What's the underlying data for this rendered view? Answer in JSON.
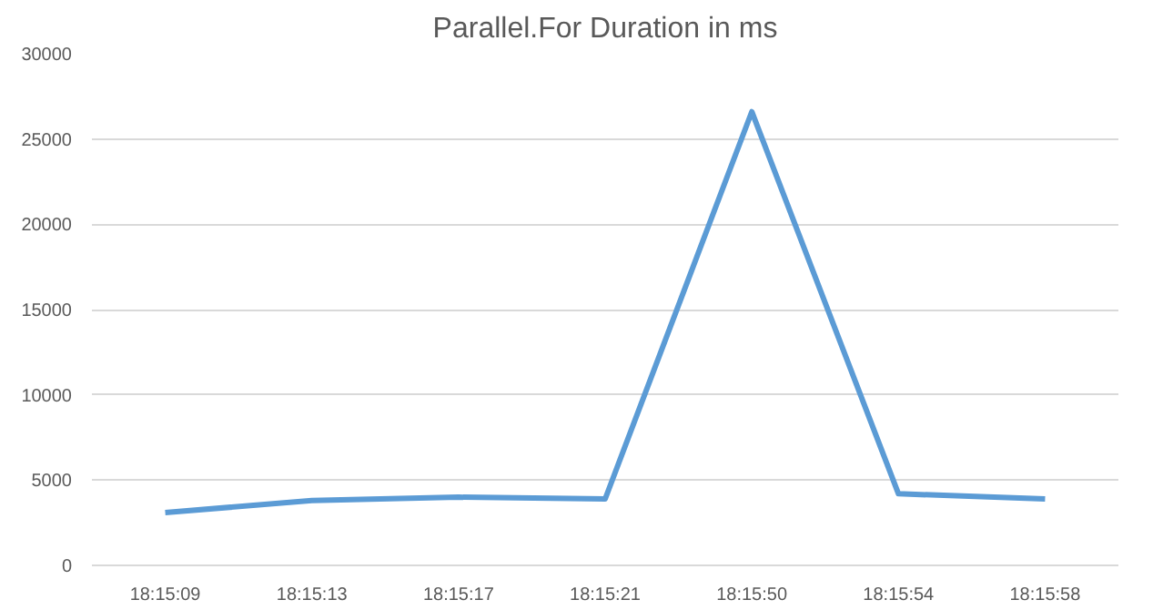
{
  "chart_data": {
    "type": "line",
    "title": "Parallel.For Duration in ms",
    "categories": [
      "18:15:09",
      "18:15:13",
      "18:15:17",
      "18:15:21",
      "18:15:50",
      "18:15:54",
      "18:15:58"
    ],
    "series": [
      {
        "color": "#5b9bd5",
        "values": [
          3100,
          3800,
          4000,
          3900,
          26600,
          4200,
          3900
        ]
      }
    ],
    "ylim": [
      0,
      30000
    ],
    "yticks": [
      0,
      5000,
      10000,
      15000,
      20000,
      25000,
      30000
    ],
    "grid": "y",
    "marker": "none",
    "line_style": "solid"
  }
}
